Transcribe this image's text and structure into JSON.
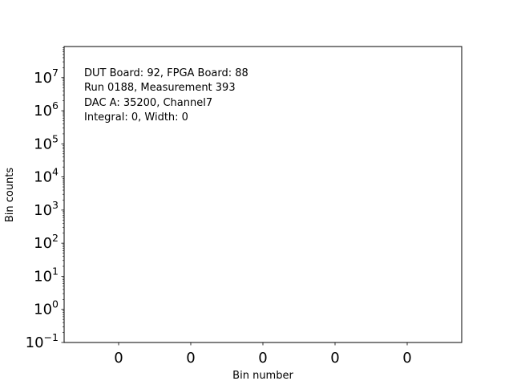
{
  "chart_data": {
    "type": "bar",
    "title": "",
    "xlabel": "Bin number",
    "ylabel": "Bin counts",
    "yscale": "log",
    "ylim": [
      0.1,
      87000000
    ],
    "y_tick_exponents": [
      -1,
      0,
      1,
      2,
      3,
      4,
      5,
      6,
      7
    ],
    "x_tick_labels": [
      "0",
      "0",
      "0",
      "0",
      "0"
    ],
    "values": [],
    "grid": false,
    "annotation": [
      "DUT Board: 92, FPGA Board: 88",
      "Run 0188, Measurement 393",
      "DAC A: 35200, Channel7",
      "Integral: 0, Width: 0"
    ]
  }
}
